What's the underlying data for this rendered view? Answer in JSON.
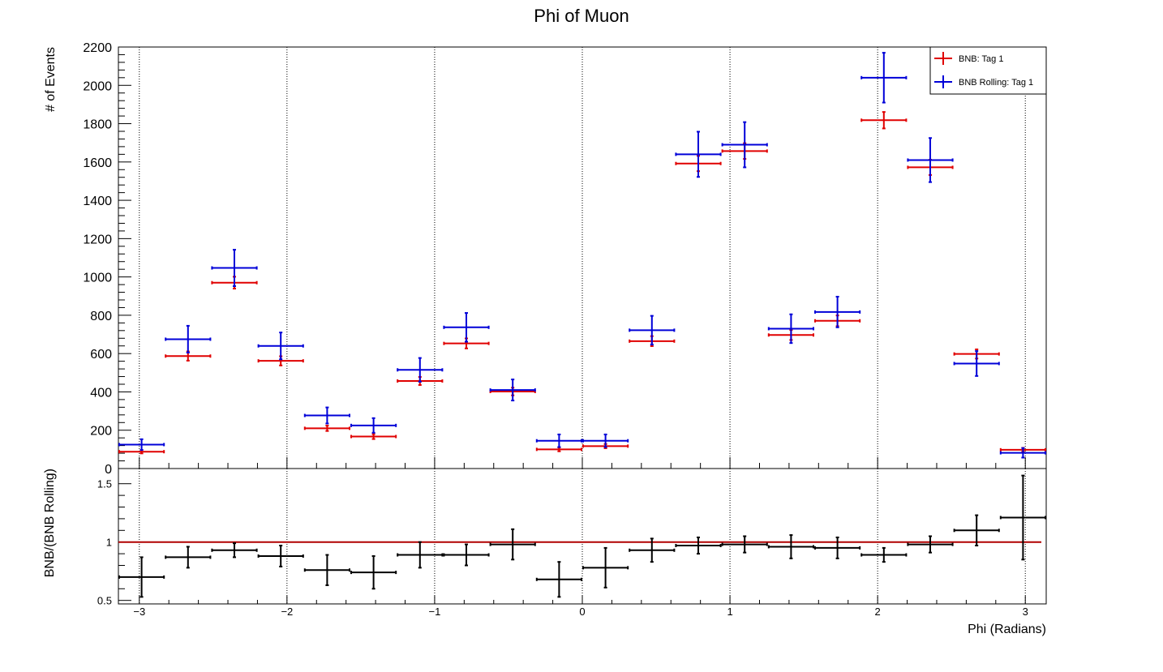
{
  "chart_data": [
    {
      "type": "scatter",
      "panel": "top",
      "title": "Phi of Muon",
      "xlabel": "",
      "ylabel": "# of Events",
      "xlim": [
        -3.14159,
        3.14159
      ],
      "ylim": [
        0,
        2200
      ],
      "yticks": [
        0,
        200,
        400,
        600,
        800,
        1000,
        1200,
        1400,
        1600,
        1800,
        2000,
        2200
      ],
      "ytick_labels": [
        "0",
        "200",
        "400",
        "600",
        "800",
        "1000",
        "1200",
        "1400",
        "1600",
        "1800",
        "2000",
        "2200"
      ],
      "grid": "vertical dotted lines at x ticks",
      "legend_position": "top-right",
      "bin_edges": [
        -3.14159,
        -2.82743,
        -2.51327,
        -2.19911,
        -1.88496,
        -1.5708,
        -1.25664,
        -0.94248,
        -0.62832,
        -0.31416,
        0,
        0.31416,
        0.62832,
        0.94248,
        1.25664,
        1.5708,
        1.88496,
        2.19911,
        2.51327,
        2.82743,
        3.14159
      ],
      "x": [
        -2.98451,
        -2.67035,
        -2.35619,
        -2.04204,
        -1.72788,
        -1.41372,
        -1.09956,
        -0.7854,
        -0.47124,
        -0.15708,
        0.15708,
        0.47124,
        0.7854,
        1.09956,
        1.41372,
        1.72788,
        2.04204,
        2.35619,
        2.67035,
        2.98451
      ],
      "series": [
        {
          "name": "BNB: Tag 1",
          "color": "#e00000",
          "values": [
            88,
            587,
            970,
            562,
            210,
            167,
            457,
            653,
            402,
            100,
            117,
            665,
            1592,
            1657,
            697,
            771,
            1818,
            1572,
            598,
            98
          ],
          "errors": [
            9,
            24,
            31,
            24,
            14,
            13,
            21,
            26,
            20,
            10,
            11,
            26,
            40,
            41,
            26,
            28,
            43,
            40,
            24,
            10
          ]
        },
        {
          "name": "BNB Rolling: Tag 1",
          "color": "#0000d8",
          "values": [
            125,
            675,
            1047,
            640,
            277,
            225,
            515,
            737,
            410,
            145,
            145,
            722,
            1640,
            1690,
            730,
            817,
            2040,
            1610,
            548,
            82
          ],
          "errors": [
            28,
            70,
            95,
            70,
            42,
            38,
            62,
            75,
            55,
            33,
            33,
            75,
            118,
            118,
            75,
            80,
            130,
            115,
            65,
            25
          ]
        }
      ]
    },
    {
      "type": "scatter",
      "panel": "bottom",
      "title": "",
      "xlabel": "Phi (Radians)",
      "ylabel": "BNB/(BNB Rolling)",
      "xlim": [
        -3.14159,
        3.14159
      ],
      "ylim": [
        0.47,
        1.63
      ],
      "xticks": [
        -3,
        -2,
        -1,
        0,
        1,
        2,
        3
      ],
      "xtick_labels": [
        "−3",
        "−2",
        "−1",
        "0",
        "1",
        "2",
        "3"
      ],
      "yticks": [
        0.5,
        1,
        1.5
      ],
      "ytick_labels": [
        "0.5",
        "1",
        "1.5"
      ],
      "grid": "vertical dotted lines at x ticks",
      "reference_line": {
        "y": 1,
        "color": "#b00000"
      },
      "series": [
        {
          "name": "",
          "color": "#000000",
          "values": [
            0.7,
            0.87,
            0.93,
            0.88,
            0.76,
            0.74,
            0.89,
            0.89,
            0.98,
            0.68,
            0.78,
            0.93,
            0.97,
            0.98,
            0.96,
            0.95,
            0.89,
            0.98,
            1.1,
            1.21
          ],
          "errors": [
            0.17,
            0.09,
            0.06,
            0.09,
            0.13,
            0.14,
            0.11,
            0.09,
            0.13,
            0.15,
            0.17,
            0.1,
            0.07,
            0.07,
            0.1,
            0.09,
            0.06,
            0.07,
            0.13,
            0.36
          ]
        }
      ]
    }
  ]
}
